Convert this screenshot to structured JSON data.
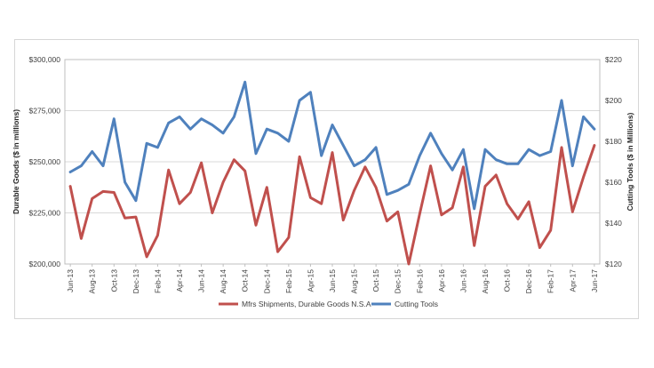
{
  "chart_data": {
    "type": "line",
    "x": [
      "Jun-13",
      "Jul-13",
      "Aug-13",
      "Sep-13",
      "Oct-13",
      "Nov-13",
      "Dec-13",
      "Jan-14",
      "Feb-14",
      "Mar-14",
      "Apr-14",
      "May-14",
      "Jun-14",
      "Jul-14",
      "Aug-14",
      "Sep-14",
      "Oct-14",
      "Nov-14",
      "Dec-14",
      "Jan-15",
      "Feb-15",
      "Mar-15",
      "Apr-15",
      "May-15",
      "Jun-15",
      "Jul-15",
      "Aug-15",
      "Sep-15",
      "Oct-15",
      "Nov-15",
      "Dec-15",
      "Jan-16",
      "Feb-16",
      "Mar-16",
      "Apr-16",
      "May-16",
      "Jun-16",
      "Jul-16",
      "Aug-16",
      "Sep-16",
      "Oct-16",
      "Nov-16",
      "Dec-16",
      "Jan-17",
      "Feb-17",
      "Mar-17",
      "Apr-17",
      "May-17",
      "Jun-17"
    ],
    "x_tick_labels": [
      "Jun-13",
      "Aug-13",
      "Oct-13",
      "Dec-13",
      "Feb-14",
      "Apr-14",
      "Jun-14",
      "Aug-14",
      "Oct-14",
      "Dec-14",
      "Feb-15",
      "Apr-15",
      "Jun-15",
      "Aug-15",
      "Oct-15",
      "Dec-15",
      "Feb-16",
      "Apr-16",
      "Jun-16",
      "Aug-16",
      "Oct-16",
      "Dec-16",
      "Feb-17",
      "Apr-17",
      "Jun-17"
    ],
    "series": [
      {
        "name": "Mfrs Shipments, Durable Goods N.S.A",
        "axis": "left",
        "color": "#c0504d",
        "values": [
          238000,
          212500,
          232000,
          235500,
          235000,
          222500,
          223000,
          203500,
          214000,
          246000,
          229500,
          235000,
          249500,
          225000,
          240000,
          251000,
          245500,
          219000,
          237500,
          206000,
          213000,
          252500,
          232500,
          229500,
          254500,
          221500,
          236000,
          247500,
          237500,
          221000,
          225500,
          200000,
          224500,
          248000,
          224000,
          227500,
          247500,
          209000,
          238000,
          243500,
          229500,
          222000,
          230500,
          208000,
          216500,
          257000,
          225500,
          242500,
          258000
        ]
      },
      {
        "name": "Cutting Tools",
        "axis": "right",
        "color": "#4f81bd",
        "values": [
          165,
          168,
          175,
          168,
          191,
          160,
          151,
          179,
          177,
          189,
          192,
          186,
          191,
          188,
          184,
          192,
          209,
          174,
          186,
          184,
          180,
          200,
          204,
          173,
          188,
          178,
          168,
          171,
          177,
          154,
          156,
          159,
          173,
          184,
          174,
          166,
          176,
          147,
          176,
          171,
          169,
          169,
          176,
          173,
          175,
          200,
          168,
          192,
          186
        ]
      }
    ],
    "ylabel": "Durable Goods ($ in millions)",
    "y2label": "Cutting Tools ($ in Millions)",
    "ylim": [
      200000,
      300000
    ],
    "y2lim": [
      120,
      220
    ],
    "y_ticks": [
      "$200,000",
      "$225,000",
      "$250,000",
      "$275,000",
      "$300,000"
    ],
    "y2_ticks": [
      "$120",
      "$140",
      "$160",
      "$180",
      "$200",
      "$220"
    ],
    "grid": true,
    "legend_position": "bottom"
  }
}
